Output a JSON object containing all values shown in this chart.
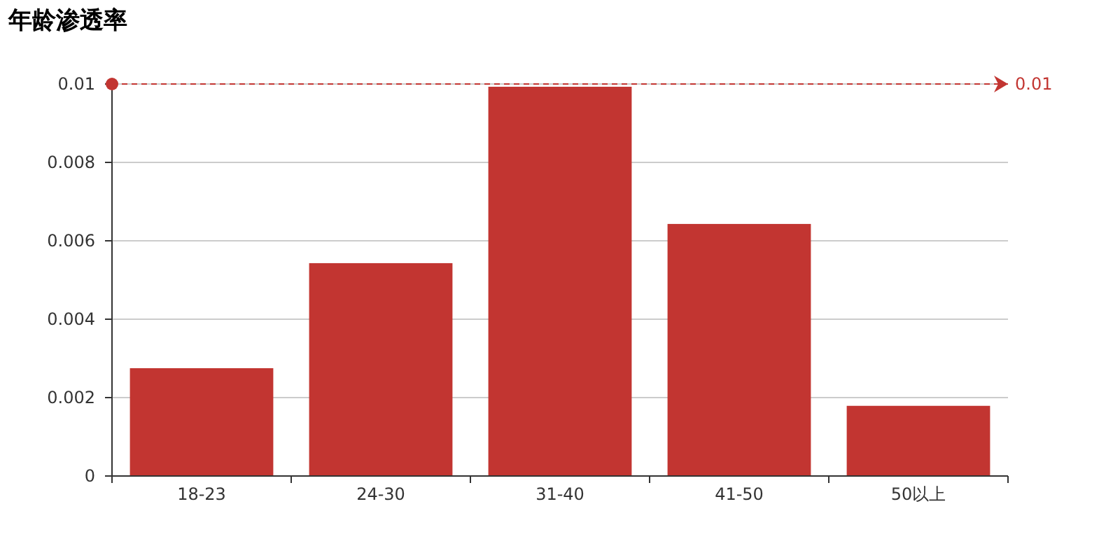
{
  "chart_data": {
    "type": "bar",
    "title": "年龄渗透率",
    "categories": [
      "18-23",
      "24-30",
      "31-40",
      "41-50",
      "50以上"
    ],
    "values": [
      0.00275,
      0.00543,
      0.00993,
      0.00643,
      0.00179
    ],
    "color": "#c23531",
    "ylim": [
      0,
      0.01
    ],
    "yticks": [
      0,
      0.002,
      0.004,
      0.006,
      0.008,
      0.01
    ],
    "grid": "y",
    "ref_lines": [
      {
        "axis": "y",
        "value": 0.01,
        "label": "0.01",
        "color": "#c23531",
        "line_style": "dashed"
      }
    ]
  }
}
